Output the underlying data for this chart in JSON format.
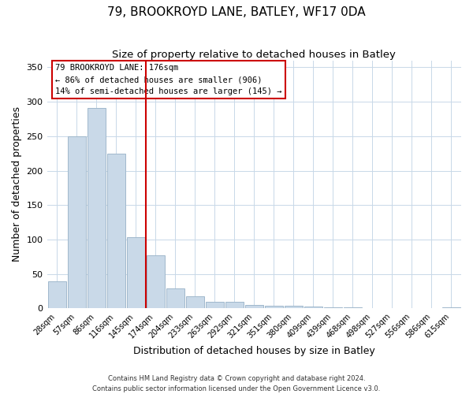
{
  "title": "79, BROOKROYD LANE, BATLEY, WF17 0DA",
  "subtitle": "Size of property relative to detached houses in Batley",
  "xlabel": "Distribution of detached houses by size in Batley",
  "ylabel": "Number of detached properties",
  "bar_labels": [
    "28sqm",
    "57sqm",
    "86sqm",
    "116sqm",
    "145sqm",
    "174sqm",
    "204sqm",
    "233sqm",
    "263sqm",
    "292sqm",
    "321sqm",
    "351sqm",
    "380sqm",
    "409sqm",
    "439sqm",
    "468sqm",
    "498sqm",
    "527sqm",
    "556sqm",
    "586sqm",
    "615sqm"
  ],
  "bar_values": [
    39,
    250,
    291,
    225,
    103,
    77,
    29,
    18,
    10,
    10,
    5,
    4,
    4,
    3,
    2,
    1,
    0,
    0,
    0,
    0,
    2
  ],
  "bar_color": "#c9d9e8",
  "bar_edgecolor": "#a0b8cc",
  "vline_x": 4.5,
  "vline_color": "#cc0000",
  "annotation_title": "79 BROOKROYD LANE: 176sqm",
  "annotation_line1": "← 86% of detached houses are smaller (906)",
  "annotation_line2": "14% of semi-detached houses are larger (145) →",
  "annotation_box_edgecolor": "#cc0000",
  "ylim": [
    0,
    360
  ],
  "yticks": [
    0,
    50,
    100,
    150,
    200,
    250,
    300,
    350
  ],
  "footer1": "Contains HM Land Registry data © Crown copyright and database right 2024.",
  "footer2": "Contains public sector information licensed under the Open Government Licence v3.0.",
  "background_color": "#ffffff",
  "grid_color": "#c8d8e8",
  "title_fontsize": 11,
  "subtitle_fontsize": 9.5
}
